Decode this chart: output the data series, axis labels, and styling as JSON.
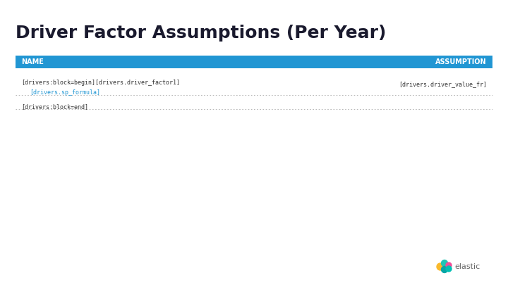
{
  "title": "Driver Factor Assumptions (Per Year)",
  "title_fontsize": 18,
  "title_color": "#1a1a2e",
  "title_font_weight": "bold",
  "bg_color": "#ffffff",
  "header_bg_color": "#2196d3",
  "header_text_color": "#ffffff",
  "header_left": "NAME",
  "header_right": "ASSUMPTION",
  "header_fontsize": 7,
  "row1_left_line1": "[drivers:block=begin][drivers.driver_factor1]",
  "row1_left_line2": "[drivers.sp_formula]",
  "row1_right": "[drivers.driver_value_fr]",
  "row2_left": "[drivers:block=end]",
  "row_fontsize": 6,
  "sp_formula_color": "#2196d3",
  "dotted_line_color": "#aaaaaa",
  "elastic_text": "elastic",
  "elastic_color": "#666666",
  "fig_width": 7.2,
  "fig_height": 4.05,
  "dpi": 100
}
